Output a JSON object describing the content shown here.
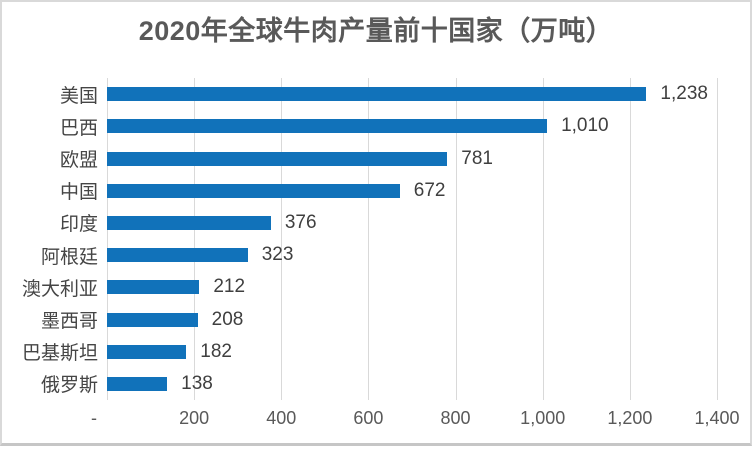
{
  "chart_data": {
    "type": "bar",
    "orientation": "horizontal",
    "title": "2020年全球牛肉产量前十国家（万吨）",
    "categories": [
      "美国",
      "巴西",
      "欧盟",
      "中国",
      "印度",
      "阿根廷",
      "澳大利亚",
      "墨西哥",
      "巴基斯坦",
      "俄罗斯"
    ],
    "values": [
      1238,
      1010,
      781,
      672,
      376,
      323,
      212,
      208,
      182,
      138
    ],
    "value_labels": [
      "1,238",
      "1,010",
      "781",
      "672",
      "376",
      "323",
      "212",
      "208",
      "182",
      "138"
    ],
    "xlabel": "",
    "ylabel": "",
    "x_axis": {
      "min": 0,
      "max": 1400,
      "step": 200,
      "tick_labels": [
        "-",
        "200",
        "400",
        "600",
        "800",
        "1,000",
        "1,200",
        "1,400"
      ]
    },
    "grid": true,
    "legend": false,
    "colors": {
      "bar": "#1172ba",
      "gridline": "#d9d9d9",
      "title_text": "#595959",
      "label_text": "#3f3f3f",
      "axis_text": "#595959",
      "frame_border": "#d9d9d9",
      "background": "#ffffff"
    }
  }
}
